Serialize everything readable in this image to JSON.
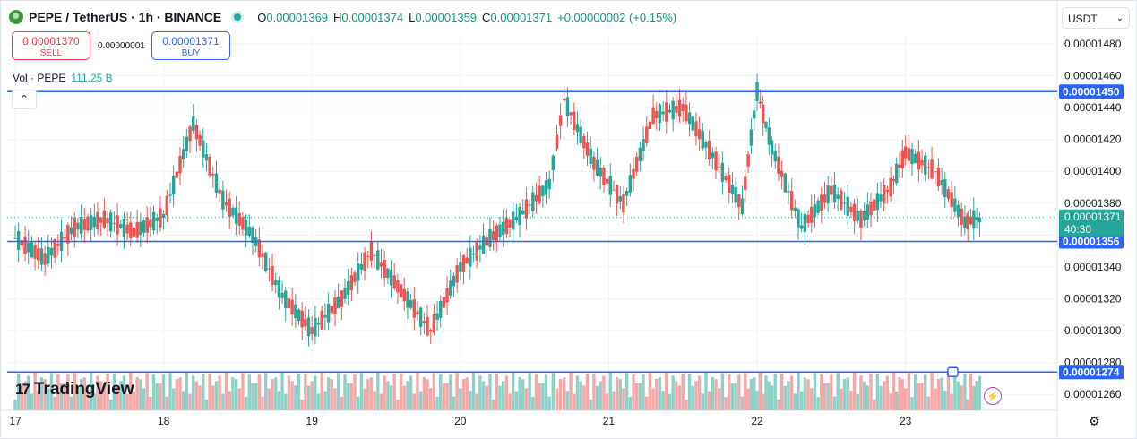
{
  "header": {
    "title": "PEPE / TetherUS · 1h · BINANCE",
    "ohlc": [
      {
        "key": "O",
        "value": "0.00001369"
      },
      {
        "key": "H",
        "value": "0.00001374"
      },
      {
        "key": "L",
        "value": "0.00001359"
      },
      {
        "key": "C",
        "value": "0.00001371"
      }
    ],
    "change": "+0.00000002 (+0.15%)"
  },
  "trade": {
    "sell_price": "0.00001370",
    "sell_label": "SELL",
    "spread": "0.00000001",
    "buy_price": "0.00001371",
    "buy_label": "BUY"
  },
  "volume_label": {
    "name": "Vol · PEPE",
    "value": "111.25 B"
  },
  "currency": "USDT",
  "brand": "TradingView",
  "colors": {
    "up": "#26a69a",
    "down": "#ef5350",
    "up_vol": "#8fd1c8",
    "down_vol": "#f4a9a8",
    "level_line": "#2962ff",
    "grid": "#f0f3fa"
  },
  "icons": [
    "pepe-logo-icon",
    "live-dot-icon",
    "chevron-up-icon",
    "chevron-down-icon",
    "lightning-icon",
    "gear-icon"
  ],
  "chart_data": {
    "type": "candlestick",
    "y_ticks": [
      "0.00001480",
      "0.00001460",
      "0.00001440",
      "0.00001420",
      "0.00001400",
      "0.00001380",
      "0.00001360",
      "0.00001340",
      "0.00001320",
      "0.00001300",
      "0.00001280",
      "0.00001260"
    ],
    "ylim": [
      1.25e-05,
      1.485e-05
    ],
    "x_ticks": [
      "17",
      "18",
      "19",
      "20",
      "21",
      "22",
      "23"
    ],
    "horizontal_levels": [
      {
        "price": 1.45e-05,
        "label": "0.00001450"
      },
      {
        "price": 1.356e-05,
        "label": "0.00001356"
      },
      {
        "price": 1.274e-05,
        "label": "0.00001274"
      }
    ],
    "last_price": {
      "price": 1.371e-05,
      "label": "0.00001371",
      "countdown": "40:30"
    },
    "candles_from_day_17_to_23_approx": [
      [
        17.0,
        1372,
        1375,
        1356,
        1358
      ],
      [
        17.2,
        1358,
        1362,
        1340,
        1345
      ],
      [
        17.4,
        1345,
        1368,
        1340,
        1365
      ],
      [
        17.6,
        1365,
        1373,
        1355,
        1370
      ],
      [
        17.8,
        1370,
        1378,
        1360,
        1362
      ],
      [
        18.0,
        1362,
        1375,
        1342,
        1372
      ],
      [
        18.2,
        1372,
        1433,
        1368,
        1430
      ],
      [
        18.4,
        1430,
        1432,
        1378,
        1382
      ],
      [
        18.6,
        1382,
        1385,
        1355,
        1360
      ],
      [
        18.8,
        1360,
        1363,
        1318,
        1322
      ],
      [
        19.0,
        1322,
        1325,
        1295,
        1300
      ],
      [
        19.2,
        1300,
        1325,
        1290,
        1320
      ],
      [
        19.4,
        1320,
        1355,
        1315,
        1350
      ],
      [
        19.6,
        1350,
        1352,
        1320,
        1325
      ],
      [
        19.8,
        1325,
        1330,
        1295,
        1300
      ],
      [
        20.0,
        1300,
        1345,
        1296,
        1340
      ],
      [
        20.2,
        1340,
        1362,
        1335,
        1358
      ],
      [
        20.4,
        1358,
        1376,
        1352,
        1372
      ],
      [
        20.6,
        1372,
        1395,
        1368,
        1392
      ],
      [
        20.7,
        1392,
        1450,
        1385,
        1445
      ],
      [
        20.9,
        1445,
        1448,
        1395,
        1405
      ],
      [
        21.1,
        1405,
        1412,
        1375,
        1380
      ],
      [
        21.3,
        1380,
        1440,
        1378,
        1435
      ],
      [
        21.5,
        1435,
        1452,
        1428,
        1440
      ],
      [
        21.7,
        1440,
        1442,
        1400,
        1410
      ],
      [
        21.9,
        1410,
        1415,
        1372,
        1378
      ],
      [
        22.0,
        1378,
        1455,
        1370,
        1450
      ],
      [
        22.1,
        1450,
        1476,
        1410,
        1415
      ],
      [
        22.3,
        1415,
        1418,
        1362,
        1365
      ],
      [
        22.5,
        1365,
        1392,
        1358,
        1388
      ],
      [
        22.7,
        1388,
        1392,
        1365,
        1370
      ],
      [
        22.9,
        1370,
        1395,
        1360,
        1390
      ],
      [
        23.0,
        1390,
        1418,
        1385,
        1412
      ],
      [
        23.2,
        1412,
        1416,
        1395,
        1400
      ],
      [
        23.4,
        1400,
        1402,
        1360,
        1368
      ],
      [
        23.5,
        1368,
        1374,
        1359,
        1371
      ]
    ]
  }
}
